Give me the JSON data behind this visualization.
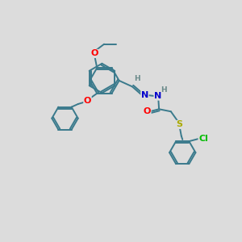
{
  "bg_color": "#dcdcdc",
  "bond_color": "#3a7a8c",
  "bond_width": 1.4,
  "atom_colors": {
    "O": "#ff0000",
    "N": "#0000cc",
    "S": "#aaaa00",
    "Cl": "#00bb00",
    "H": "#6a8a8a",
    "C": "#3a7a8c"
  },
  "font_size": 7.5,
  "fig_width": 3.0,
  "fig_height": 3.0
}
